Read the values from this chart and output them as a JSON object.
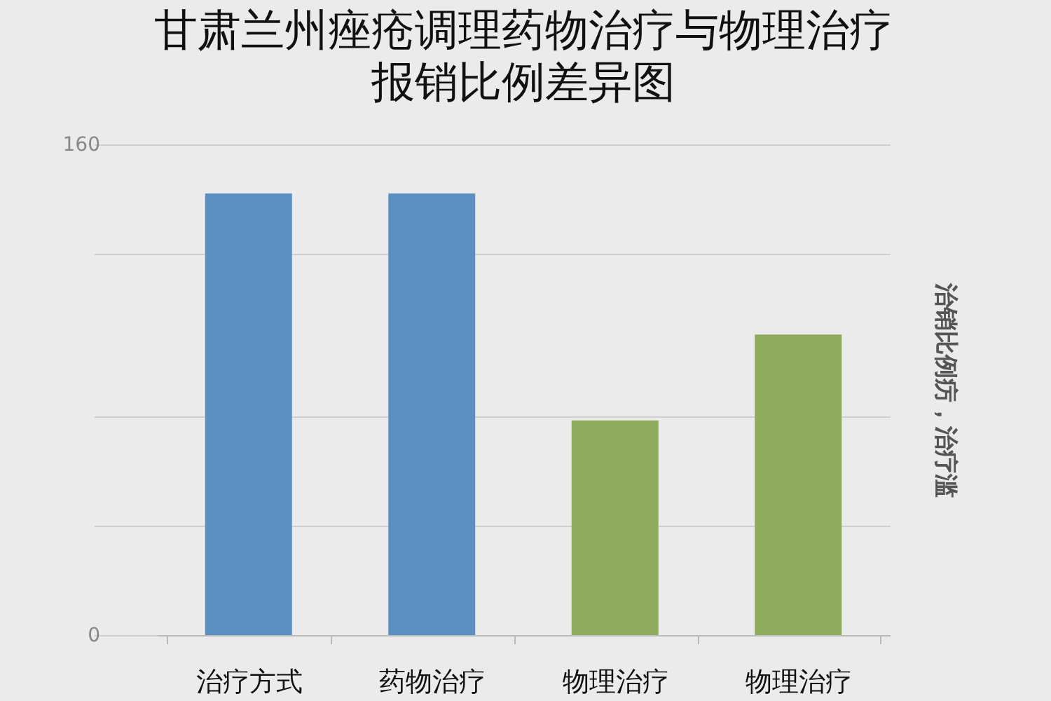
{
  "chart_data": {
    "type": "bar",
    "title": "甘肃兰州痤疮调理药物治疗与物理治疗",
    "subtitle": "报销比例差异图",
    "categories": [
      "治疗方式",
      "药物治疗",
      "物理治疗",
      "物理治疗"
    ],
    "values": [
      144,
      144,
      70,
      98
    ],
    "colors": [
      "#5b8fc2",
      "#5b8fc2",
      "#8fab5e",
      "#8fab5e"
    ],
    "ylim": [
      0,
      160
    ],
    "yticks": [
      0,
      {
        "value": 35.7,
        "label": null
      },
      {
        "value": 71.3,
        "label": null
      },
      {
        "value": 124.3,
        "label": null
      },
      160
    ],
    "y2label": "治销比例疠，治疗滥",
    "grid": "y"
  }
}
